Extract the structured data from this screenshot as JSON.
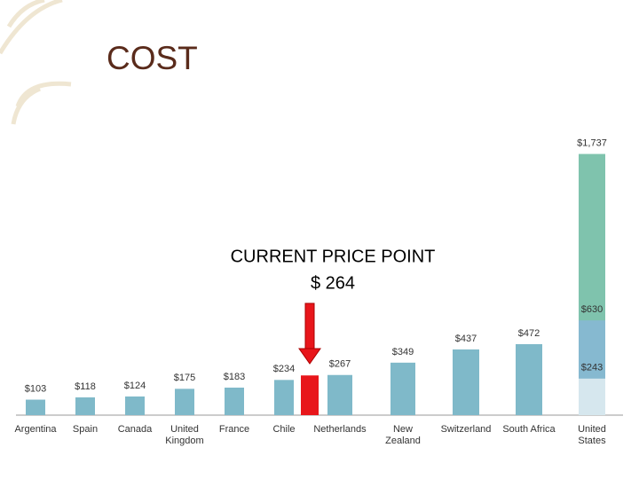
{
  "chart_data": {
    "type": "bar",
    "title": "COST",
    "annotation": "CURRENT PRICE POINT",
    "categories": [
      "Argentina",
      "Spain",
      "Canada",
      "United\nKingdom",
      "France",
      "Chile",
      null,
      "Netherlands",
      "New\nZealand",
      "Switzerland",
      "South Africa",
      "United\nStates"
    ],
    "ylim": [
      0,
      2000
    ],
    "series": [
      {
        "color": "#7fb9c9",
        "values": [
          103,
          118,
          124,
          175,
          183,
          234,
          null,
          267,
          349,
          437,
          472,
          null
        ],
        "value_labels": [
          "$103",
          "$118",
          "$124",
          "$175",
          "$183",
          "$234",
          null,
          "$267",
          "$349",
          "$437",
          "$472",
          null
        ]
      },
      {
        "color": "#e8161b",
        "values": [
          null,
          null,
          null,
          null,
          null,
          null,
          264,
          null,
          null,
          null,
          null,
          null
        ],
        "value_labels": [
          null,
          null,
          null,
          null,
          null,
          null,
          "$ 264",
          null,
          null,
          null,
          null,
          null
        ]
      },
      {
        "color": "#7fc3ad",
        "values": [
          null,
          null,
          null,
          null,
          null,
          null,
          null,
          null,
          null,
          null,
          null,
          1737
        ],
        "value_labels": [
          null,
          null,
          null,
          null,
          null,
          null,
          null,
          null,
          null,
          null,
          null,
          "$1,737"
        ]
      },
      {
        "color": "#86b9d0",
        "values": [
          null,
          null,
          null,
          null,
          null,
          null,
          null,
          null,
          null,
          null,
          null,
          630
        ],
        "value_labels": [
          null,
          null,
          null,
          null,
          null,
          null,
          null,
          null,
          null,
          null,
          null,
          "$630"
        ]
      },
      {
        "color": "#d6e7ee",
        "values": [
          null,
          null,
          null,
          null,
          null,
          null,
          null,
          null,
          null,
          null,
          null,
          243
        ],
        "value_labels": [
          null,
          null,
          null,
          null,
          null,
          null,
          null,
          null,
          null,
          null,
          null,
          "$243"
        ]
      }
    ]
  }
}
